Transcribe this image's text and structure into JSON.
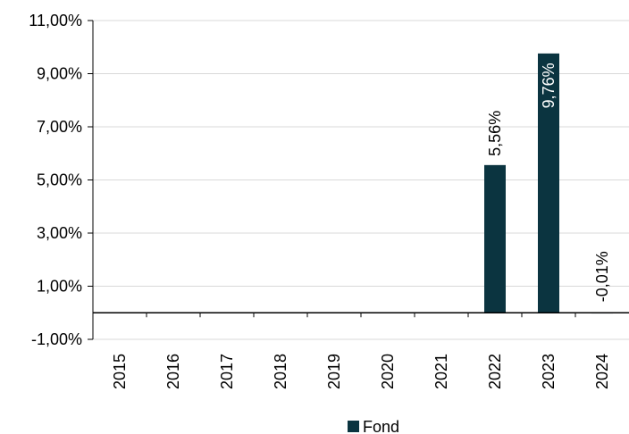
{
  "chart_data": {
    "type": "bar",
    "categories": [
      "2015",
      "2016",
      "2017",
      "2018",
      "2019",
      "2020",
      "2021",
      "2022",
      "2023",
      "2024"
    ],
    "series": [
      {
        "name": "Fond",
        "values": [
          null,
          null,
          null,
          null,
          null,
          null,
          null,
          5.56,
          9.76,
          -0.01
        ],
        "data_labels": [
          "",
          "",
          "",
          "",
          "",
          "",
          "",
          "5,56%",
          "9,76%",
          "-0,01%"
        ]
      }
    ],
    "y_ticks": [
      -1,
      1,
      3,
      5,
      7,
      9,
      11
    ],
    "y_tick_labels": [
      "-1,00%",
      "1,00%",
      "3,00%",
      "5,00%",
      "7,00%",
      "9,00%",
      "11,00%"
    ],
    "ylim": [
      -1,
      11
    ],
    "grid": true,
    "legend": "bottom",
    "colors": {
      "bar": "#0b3440",
      "grid": "#d9d9d9",
      "axis": "#000000",
      "label_outside": "#000000",
      "label_inside": "#ffffff"
    }
  }
}
